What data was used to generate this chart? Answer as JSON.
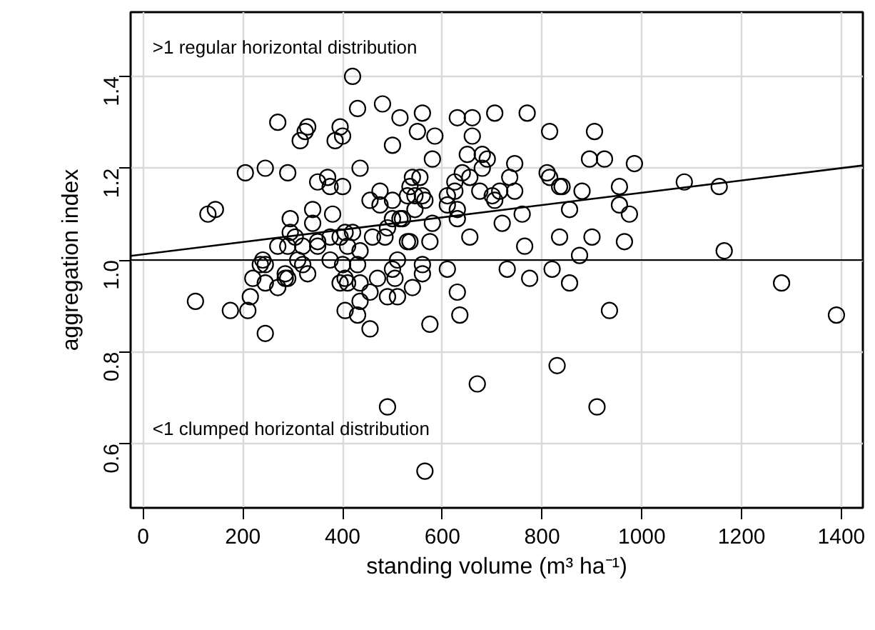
{
  "chart_data": {
    "type": "scatter",
    "xlabel": "standing volume (m³ ha⁻¹)",
    "ylabel": "aggregation index",
    "annotations": [
      ">1 regular horizontal distribution",
      "<1 clumped horizontal distribution"
    ],
    "xlim": [
      -25,
      1443
    ],
    "ylim": [
      0.46,
      1.54
    ],
    "xticks": [
      0,
      200,
      400,
      600,
      800,
      1000,
      1200,
      1400
    ],
    "yticks": [
      0.6,
      0.8,
      {
        "value": 1.0,
        "label": "1.0"
      },
      1.2,
      1.4
    ],
    "grid": true,
    "ref_lines": [
      {
        "axis": "y",
        "value": 1.0,
        "color": "#000000"
      }
    ],
    "series": [
      {
        "color": "#000000",
        "marker": "circle",
        "x": [
          420,
          430,
          480,
          515,
          560,
          550,
          585,
          580,
          630,
          660,
          660,
          650,
          680,
          680,
          705,
          270,
          330,
          325,
          315,
          395,
          400,
          385,
          500,
          435,
          370,
          350,
          375,
          400,
          290,
          245,
          205,
          130,
          145,
          455,
          475,
          475,
          500,
          540,
          555,
          535,
          560,
          545,
          530,
          565,
          545,
          610,
          625,
          625,
          640,
          655,
          675,
          610,
          630,
          630,
          580,
          520,
          500,
          380,
          340,
          340,
          295,
          295,
          305,
          270,
          290,
          320,
          350,
          350,
          375,
          395,
          405,
          420,
          410,
          435,
          460,
          490,
          485,
          515,
          530,
          535,
          575,
          655,
          240,
          235,
          245,
          310,
          320,
          330,
          375,
          400,
          430,
          510,
          500,
          560,
          560,
          610,
          220,
          285,
          285,
          105,
          175,
          210,
          215,
          245,
          245,
          270,
          290,
          395,
          405,
          410,
          435,
          435,
          405,
          430,
          455,
          455,
          470,
          505,
          490,
          510,
          540,
          630,
          635,
          575,
          670,
          490,
          565,
          770,
          815,
          905,
          895,
          925,
          985,
          690,
          745,
          735,
          745,
          715,
          700,
          705,
          810,
          815,
          835,
          840,
          880,
          955,
          855,
          955,
          975,
          760,
          720,
          835,
          900,
          965,
          765,
          875,
          1085,
          1155,
          1165,
          730,
          775,
          820,
          855,
          1280,
          935,
          1390,
          830,
          910
        ],
        "values": [
          1.4,
          1.33,
          1.34,
          1.31,
          1.32,
          1.28,
          1.27,
          1.22,
          1.31,
          1.31,
          1.27,
          1.23,
          1.23,
          1.2,
          1.32,
          1.3,
          1.29,
          1.28,
          1.26,
          1.29,
          1.27,
          1.26,
          1.25,
          1.2,
          1.18,
          1.17,
          1.16,
          1.16,
          1.19,
          1.2,
          1.19,
          1.1,
          1.11,
          1.13,
          1.15,
          1.12,
          1.13,
          1.18,
          1.18,
          1.16,
          1.14,
          1.14,
          1.14,
          1.13,
          1.11,
          1.14,
          1.17,
          1.15,
          1.19,
          1.18,
          1.15,
          1.12,
          1.11,
          1.09,
          1.08,
          1.09,
          1.09,
          1.1,
          1.11,
          1.08,
          1.09,
          1.06,
          1.05,
          1.03,
          1.03,
          1.03,
          1.04,
          1.03,
          1.05,
          1.05,
          1.06,
          1.06,
          1.03,
          1.02,
          1.05,
          1.07,
          1.05,
          1.09,
          1.04,
          1.04,
          1.04,
          1.05,
          1.0,
          0.99,
          0.99,
          1.0,
          0.99,
          0.97,
          1.0,
          0.99,
          0.99,
          1.0,
          0.98,
          0.99,
          0.97,
          0.98,
          0.96,
          0.97,
          0.96,
          0.91,
          0.89,
          0.89,
          0.92,
          0.95,
          0.84,
          0.94,
          0.96,
          0.95,
          0.96,
          0.95,
          0.95,
          0.91,
          0.89,
          0.88,
          0.93,
          0.85,
          0.96,
          0.96,
          0.92,
          0.92,
          0.94,
          0.93,
          0.88,
          0.86,
          0.73,
          0.68,
          0.54,
          1.32,
          1.28,
          1.28,
          1.22,
          1.22,
          1.21,
          1.22,
          1.21,
          1.18,
          1.15,
          1.15,
          1.14,
          1.13,
          1.19,
          1.18,
          1.16,
          1.16,
          1.15,
          1.16,
          1.11,
          1.12,
          1.1,
          1.1,
          1.08,
          1.05,
          1.05,
          1.04,
          1.03,
          1.01,
          1.17,
          1.16,
          1.02,
          0.98,
          0.96,
          0.98,
          0.95,
          0.95,
          0.89,
          0.88,
          0.77,
          0.68
        ]
      },
      {
        "type": "line",
        "color": "#000000",
        "x": [
          -25,
          1443
        ],
        "values": [
          1.009,
          1.206
        ]
      }
    ]
  }
}
